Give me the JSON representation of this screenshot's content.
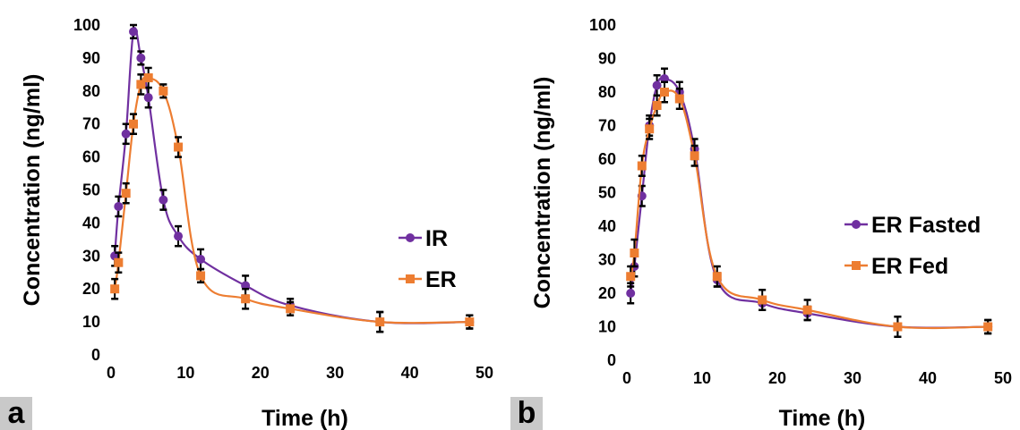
{
  "chart_data": [
    {
      "panel_label": "a",
      "type": "line",
      "xlabel": "Time (h)",
      "ylabel": "Concentration (ng/ml)",
      "xlim": [
        0,
        50
      ],
      "ylim": [
        0,
        100
      ],
      "xticks": [
        0,
        10,
        20,
        30,
        40,
        50
      ],
      "yticks": [
        0,
        10,
        20,
        30,
        40,
        50,
        60,
        70,
        80,
        90,
        100
      ],
      "grid": false,
      "legend_position": "right",
      "series": [
        {
          "name": "IR",
          "color": "#7030a0",
          "marker": "circle",
          "points": [
            {
              "x": 0.5,
              "y": 30,
              "err": 3
            },
            {
              "x": 1,
              "y": 45,
              "err": 3
            },
            {
              "x": 2,
              "y": 67,
              "err": 3
            },
            {
              "x": 3,
              "y": 98,
              "err": 2
            },
            {
              "x": 4,
              "y": 90,
              "err": 2
            },
            {
              "x": 5,
              "y": 78,
              "err": 3
            },
            {
              "x": 7,
              "y": 47,
              "err": 3
            },
            {
              "x": 9,
              "y": 36,
              "err": 3
            },
            {
              "x": 12,
              "y": 29,
              "err": 3
            },
            {
              "x": 18,
              "y": 21,
              "err": 3
            },
            {
              "x": 24,
              "y": 15,
              "err": 2
            },
            {
              "x": 36,
              "y": 10,
              "err": 3
            },
            {
              "x": 48,
              "y": 10,
              "err": 2
            }
          ]
        },
        {
          "name": "ER",
          "color": "#ed7d31",
          "marker": "square",
          "points": [
            {
              "x": 0.5,
              "y": 20,
              "err": 3
            },
            {
              "x": 1,
              "y": 28,
              "err": 3
            },
            {
              "x": 2,
              "y": 49,
              "err": 3
            },
            {
              "x": 3,
              "y": 70,
              "err": 3
            },
            {
              "x": 4,
              "y": 82,
              "err": 3
            },
            {
              "x": 5,
              "y": 84,
              "err": 3
            },
            {
              "x": 7,
              "y": 80,
              "err": 2
            },
            {
              "x": 9,
              "y": 63,
              "err": 3
            },
            {
              "x": 12,
              "y": 24,
              "err": 2
            },
            {
              "x": 18,
              "y": 17,
              "err": 3
            },
            {
              "x": 24,
              "y": 14,
              "err": 2
            },
            {
              "x": 36,
              "y": 10,
              "err": 3
            },
            {
              "x": 48,
              "y": 10,
              "err": 2
            }
          ]
        }
      ]
    },
    {
      "panel_label": "b",
      "type": "line",
      "xlabel": "Time (h)",
      "ylabel": "Concentration (ng/ml)",
      "xlim": [
        0,
        50
      ],
      "ylim": [
        0,
        100
      ],
      "xticks": [
        0,
        10,
        20,
        30,
        40,
        50
      ],
      "yticks": [
        0,
        10,
        20,
        30,
        40,
        50,
        60,
        70,
        80,
        90,
        100
      ],
      "grid": false,
      "legend_position": "right",
      "series": [
        {
          "name": "ER Fasted",
          "color": "#7030a0",
          "marker": "circle",
          "points": [
            {
              "x": 0.5,
              "y": 20,
              "err": 3
            },
            {
              "x": 1,
              "y": 28,
              "err": 3
            },
            {
              "x": 2,
              "y": 49,
              "err": 3
            },
            {
              "x": 3,
              "y": 70,
              "err": 3
            },
            {
              "x": 4,
              "y": 82,
              "err": 3
            },
            {
              "x": 5,
              "y": 84,
              "err": 3
            },
            {
              "x": 7,
              "y": 80,
              "err": 3
            },
            {
              "x": 9,
              "y": 63,
              "err": 3
            },
            {
              "x": 12,
              "y": 24,
              "err": 2
            },
            {
              "x": 18,
              "y": 17,
              "err": 2
            },
            {
              "x": 24,
              "y": 14,
              "err": 2
            },
            {
              "x": 36,
              "y": 10,
              "err": 3
            },
            {
              "x": 48,
              "y": 10,
              "err": 2
            }
          ]
        },
        {
          "name": "ER Fed",
          "color": "#ed7d31",
          "marker": "square",
          "points": [
            {
              "x": 0.5,
              "y": 25,
              "err": 3
            },
            {
              "x": 1,
              "y": 32,
              "err": 4
            },
            {
              "x": 2,
              "y": 58,
              "err": 3
            },
            {
              "x": 3,
              "y": 69,
              "err": 3
            },
            {
              "x": 4,
              "y": 76,
              "err": 3
            },
            {
              "x": 5,
              "y": 80,
              "err": 3
            },
            {
              "x": 7,
              "y": 78,
              "err": 3
            },
            {
              "x": 9,
              "y": 61,
              "err": 3
            },
            {
              "x": 12,
              "y": 25,
              "err": 3
            },
            {
              "x": 18,
              "y": 18,
              "err": 3
            },
            {
              "x": 24,
              "y": 15,
              "err": 3
            },
            {
              "x": 36,
              "y": 10,
              "err": 3
            },
            {
              "x": 48,
              "y": 10,
              "err": 2
            }
          ]
        }
      ]
    }
  ]
}
